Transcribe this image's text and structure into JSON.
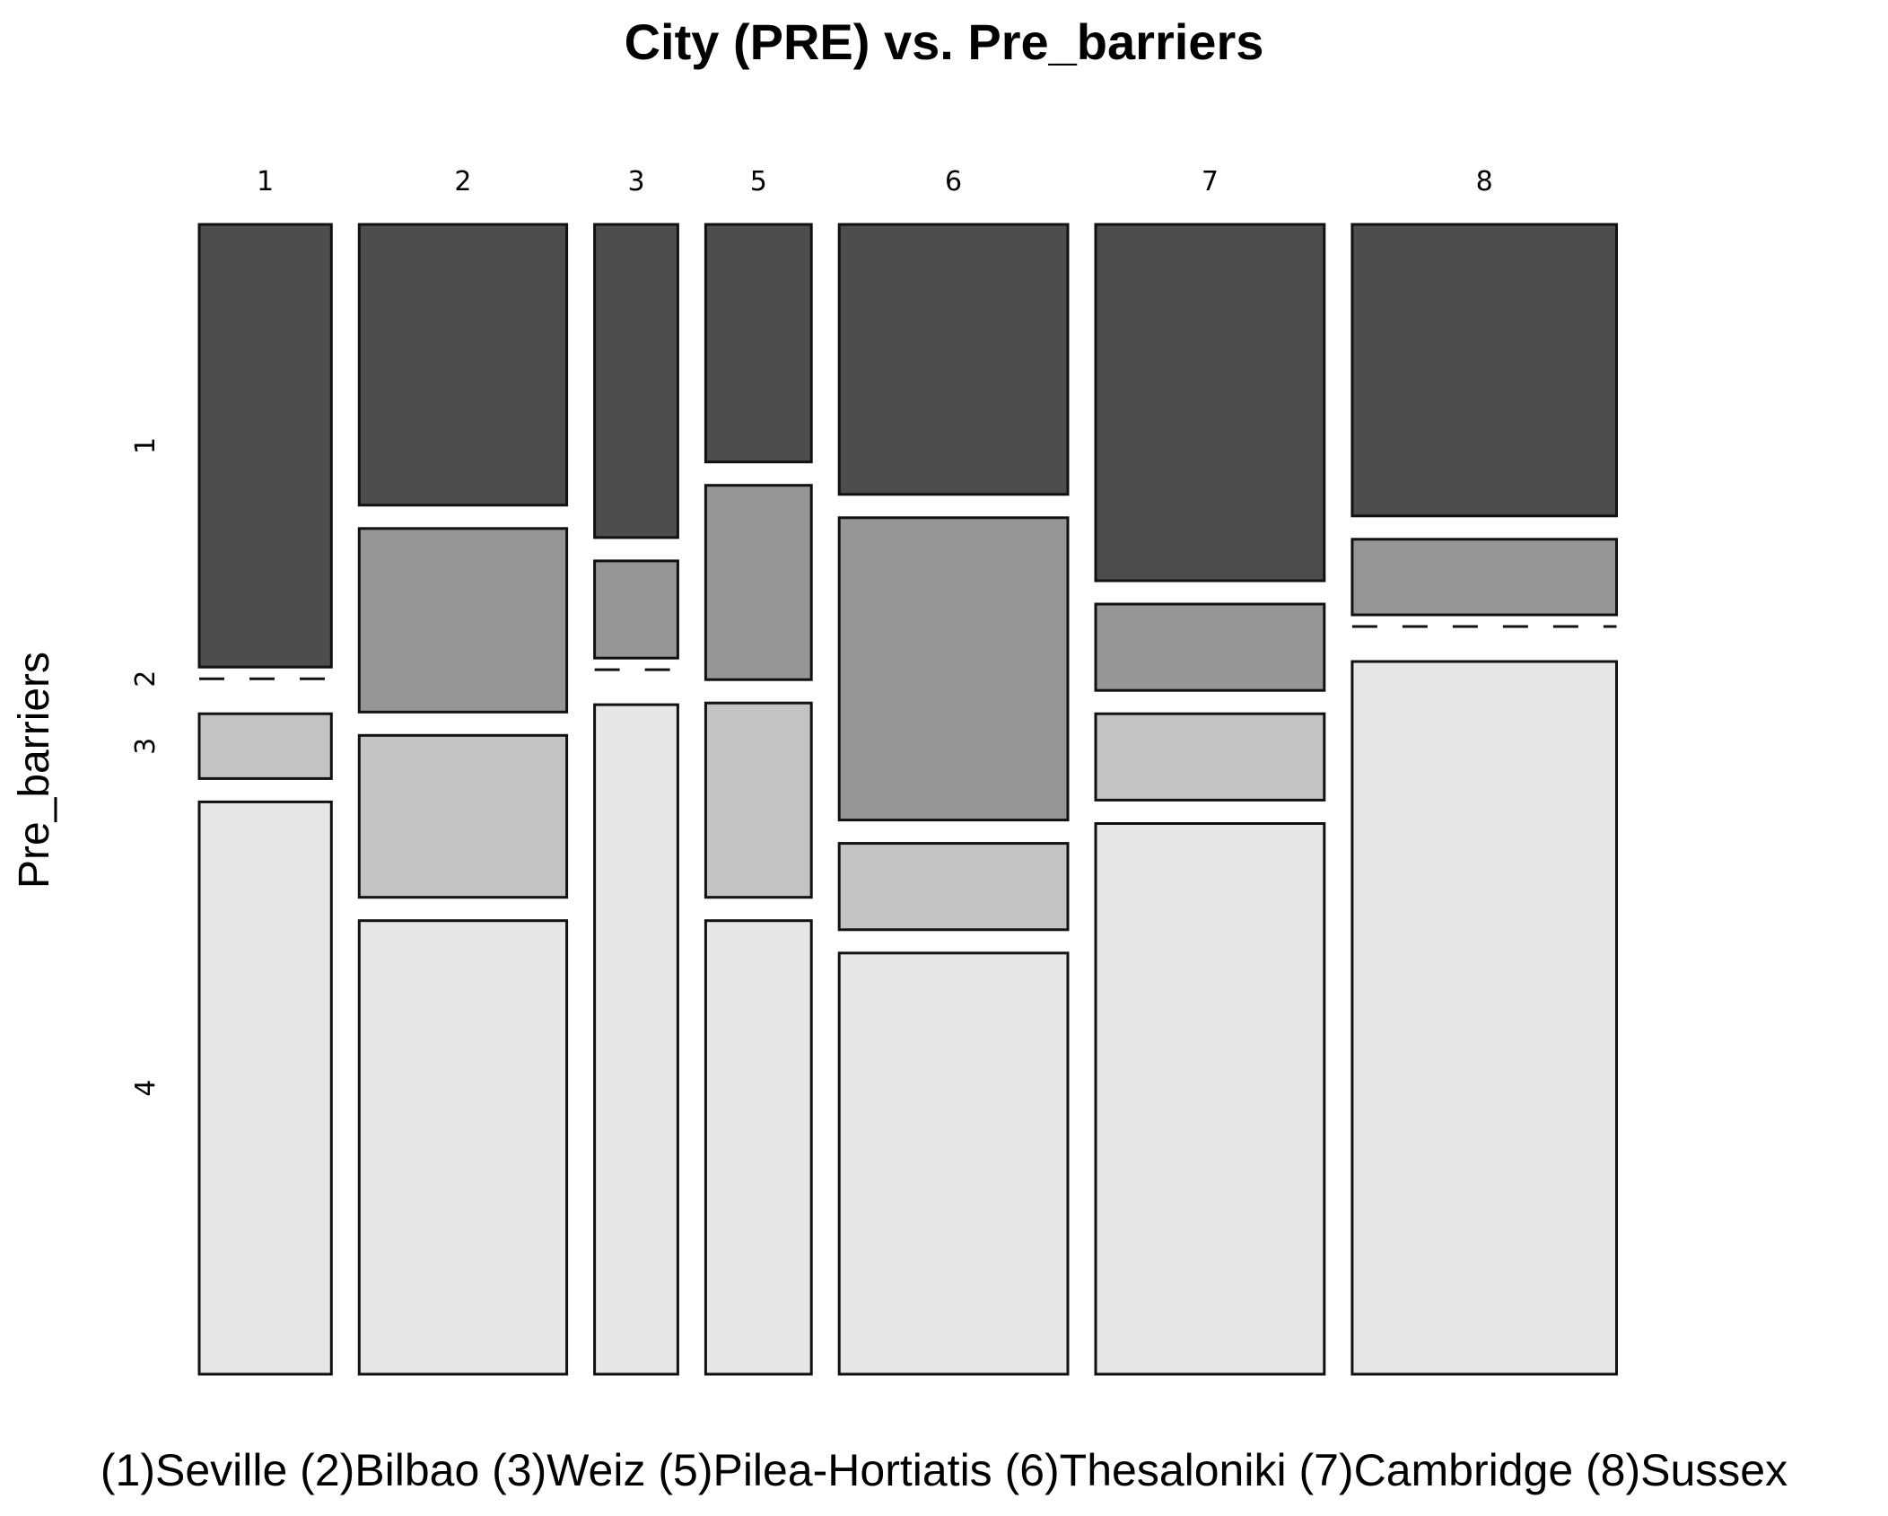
{
  "chart_data": {
    "type": "mosaic",
    "title": "City (PRE) vs.  Pre_barriers",
    "ylabel": "Pre_barriers",
    "caption": "(1)Seville (2)Bilbao (3)Weiz (5)Pilea-Hortiatis (6)Thesaloniki (7)Cambridge (8)Sussex",
    "categories": [
      "1",
      "2",
      "3",
      "5",
      "6",
      "7",
      "8"
    ],
    "column_shares": [
      0.1,
      0.157,
      0.063,
      0.08,
      0.173,
      0.173,
      0.2
    ],
    "levels": [
      "1",
      "2",
      "3",
      "4"
    ],
    "level_colors": {
      "1": "#4d4d4d",
      "2": "#969696",
      "3": "#c3c3c3",
      "4": "#e6e6e6"
    },
    "series": [
      {
        "name": "1",
        "values": [
          0.41,
          0.26,
          0.29,
          0.22,
          0.25,
          0.33,
          0.27
        ]
      },
      {
        "name": "2",
        "values": [
          0.0,
          0.17,
          0.09,
          0.18,
          0.28,
          0.08,
          0.07
        ]
      },
      {
        "name": "3",
        "values": [
          0.06,
          0.15,
          0.0,
          0.18,
          0.08,
          0.08,
          0.0
        ]
      },
      {
        "name": "4",
        "values": [
          0.53,
          0.42,
          0.62,
          0.42,
          0.39,
          0.51,
          0.66
        ]
      }
    ]
  }
}
